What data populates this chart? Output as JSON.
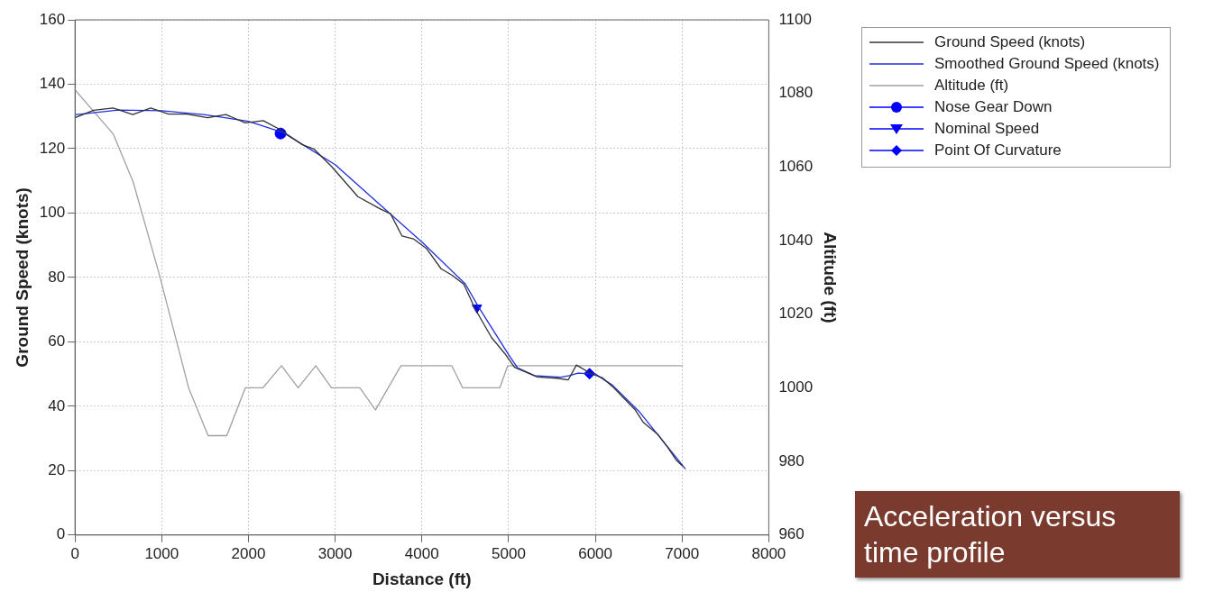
{
  "chart_data": {
    "type": "line",
    "xlabel": "Distance (ft)",
    "ylabel": "Ground Speed (knots)",
    "y2label": "Altitude (ft)",
    "xlim": [
      0,
      8000
    ],
    "xticks": [
      0,
      1000,
      2000,
      3000,
      4000,
      5000,
      6000,
      7000,
      8000
    ],
    "ylim": [
      0,
      160
    ],
    "yticks": [
      0,
      20,
      40,
      60,
      80,
      100,
      120,
      140,
      160
    ],
    "y2lim": [
      960,
      1100
    ],
    "y2ticks": [
      960,
      980,
      1000,
      1020,
      1040,
      1060,
      1080,
      1100
    ],
    "grid": true,
    "legend": "top right",
    "annotations": [
      "Acceleration versus time profile"
    ],
    "series": [
      {
        "name": "Ground Speed (knots)",
        "type": "line",
        "color": "#333333",
        "x": [
          0,
          214,
          440,
          666,
          873,
          1080,
          1287,
          1531,
          1738,
          1964,
          2170,
          2359,
          2622,
          2754,
          2961,
          3262,
          3525,
          3638,
          3770,
          3901,
          4052,
          4221,
          4353,
          4484,
          4616,
          4804,
          4955,
          5068,
          5331,
          5557,
          5688,
          5782,
          5952,
          6084,
          6215,
          6459,
          6553,
          6723,
          6836,
          6930,
          7005
        ],
        "values": [
          129.6,
          131.9,
          132.6,
          130.6,
          132.6,
          130.7,
          130.7,
          129.6,
          130.6,
          128,
          128.7,
          126,
          121.2,
          119.9,
          114.4,
          105.1,
          101.2,
          99.8,
          92.9,
          92,
          89,
          82.7,
          80.6,
          77.9,
          70.1,
          61.3,
          56.4,
          52.1,
          49.1,
          48.7,
          48.2,
          52.8,
          50.1,
          48.8,
          45.7,
          38.9,
          35,
          31.2,
          27.2,
          23.4,
          21.4
        ]
      },
      {
        "name": "Smoothed Ground Speed (knots)",
        "type": "line",
        "color": "#1f2fe0",
        "x": [
          0,
          500,
          1000,
          1500,
          2000,
          2400,
          3000,
          3500,
          4000,
          4500,
          4650,
          5000,
          5100,
          5300,
          5600,
          5700,
          5800,
          6000,
          6200,
          6500,
          7040
        ],
        "values": [
          130.5,
          132,
          131.8,
          130.5,
          128.5,
          125,
          115,
          103,
          91,
          78,
          71,
          56,
          52,
          49.5,
          49,
          49.5,
          50.3,
          50,
          46.5,
          38.5,
          20.5
        ]
      },
      {
        "name": "Altitude (ft)",
        "type": "line",
        "axis": "y2",
        "color": "#a0a0a0",
        "x": [
          0,
          440,
          670,
          970,
          1310,
          1535,
          1750,
          1964,
          2167,
          2381,
          2573,
          2777,
          2957,
          3284,
          3465,
          3758,
          4345,
          4470,
          4898,
          4989,
          7009
        ],
        "values": [
          1081,
          1069,
          1056,
          1031,
          1000,
          987,
          987,
          1000,
          1000,
          1006,
          1000,
          1006,
          1000,
          1000,
          994,
          1006,
          1006,
          1000,
          1000,
          1006,
          1006
        ]
      },
      {
        "name": "Nose Gear Down",
        "type": "scatter",
        "marker": "circle",
        "color": "#0000ff",
        "x": [
          2370
        ],
        "values": [
          124.7
        ]
      },
      {
        "name": "Nominal Speed",
        "type": "scatter",
        "marker": "triangle",
        "color": "#0000ff",
        "x": [
          4635
        ],
        "values": [
          70.6
        ]
      },
      {
        "name": "Point Of Curvature",
        "type": "scatter",
        "marker": "diamond",
        "color": "#0000ff",
        "x": [
          5933
        ],
        "values": [
          50.1
        ]
      }
    ]
  }
}
